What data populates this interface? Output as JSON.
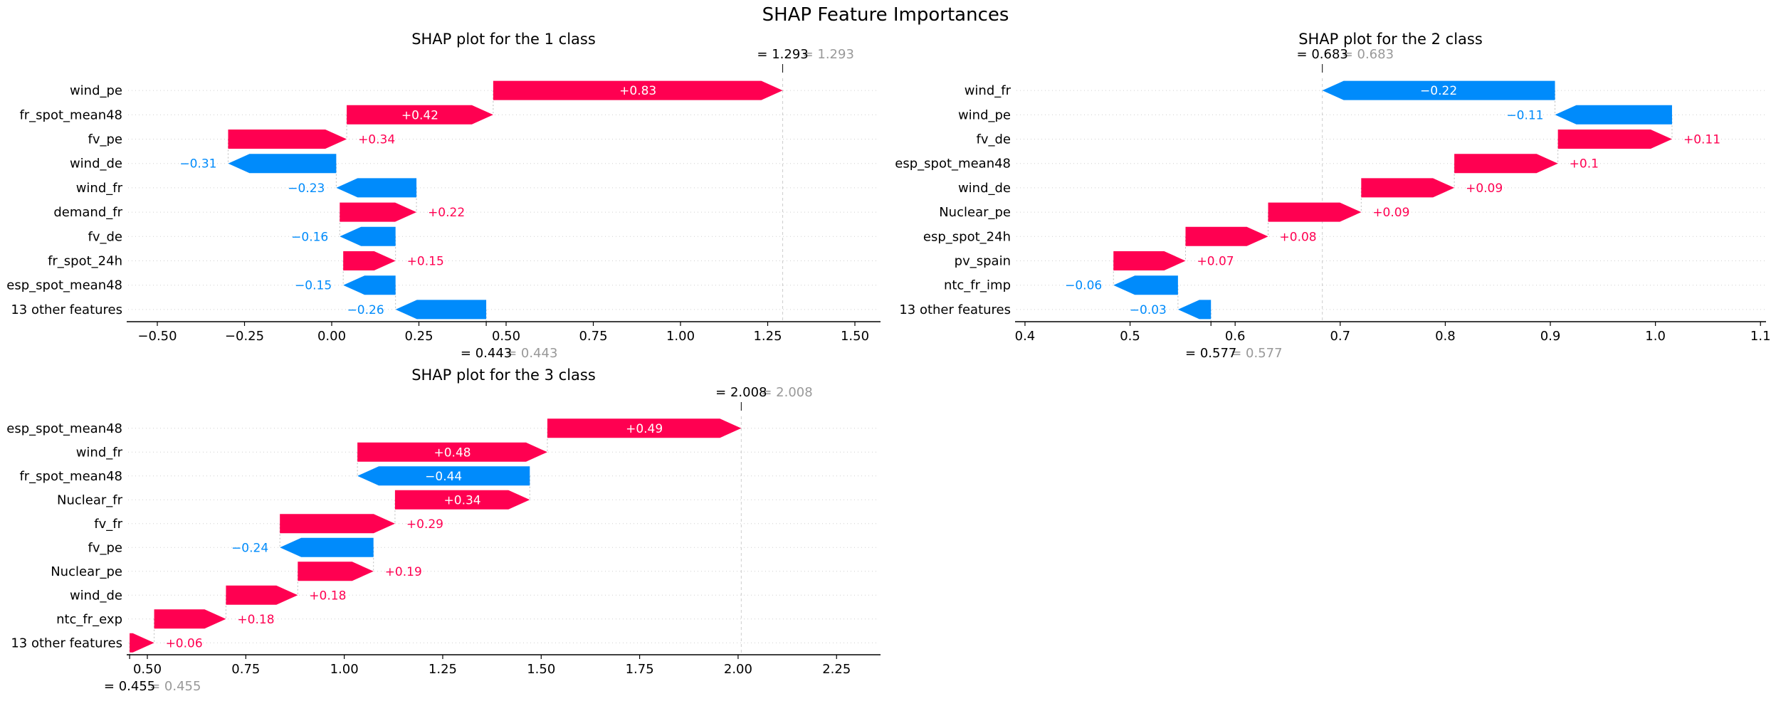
{
  "title": "SHAP Feature Importances",
  "colors": {
    "positive": "#ff0051",
    "negative": "#008bfb",
    "label_gray": "#999999",
    "text": "#000000",
    "grid_line": "#cfcfcf",
    "fx_line": "#cccccc",
    "connector_line": "#bbbbbb",
    "background": "#ffffff"
  },
  "chart_data": [
    {
      "type": "bar",
      "subtype": "shap-waterfall",
      "title": "SHAP plot for the 1 class",
      "fx": {
        "value": 1.293,
        "label": "= 1.293"
      },
      "base": {
        "value": 0.443,
        "label": "= 0.443"
      },
      "xlim": [
        -0.5837,
        1.5694
      ],
      "grid": true,
      "xticks": [
        {
          "v": -0.5,
          "label": "−0.50"
        },
        {
          "v": -0.25,
          "label": "−0.25"
        },
        {
          "v": 0.0,
          "label": "0.00"
        },
        {
          "v": 0.25,
          "label": "0.25"
        },
        {
          "v": 0.5,
          "label": "0.50"
        },
        {
          "v": 0.75,
          "label": "0.75"
        },
        {
          "v": 1.0,
          "label": "1.00"
        },
        {
          "v": 1.25,
          "label": "1.25"
        },
        {
          "v": 1.5,
          "label": "1.50"
        }
      ],
      "features": [
        {
          "name": "wind_pe",
          "value": 0.83,
          "label": "+0.83",
          "label_inside": true
        },
        {
          "name": "fr_spot_mean48",
          "value": 0.42,
          "label": "+0.42",
          "label_inside": true
        },
        {
          "name": "fv_pe",
          "value": 0.34,
          "label": "+0.34",
          "label_inside": false
        },
        {
          "name": "wind_de",
          "value": -0.31,
          "label": "−0.31",
          "label_inside": false
        },
        {
          "name": "wind_fr",
          "value": -0.23,
          "label": "−0.23",
          "label_inside": false
        },
        {
          "name": "demand_fr",
          "value": 0.22,
          "label": "+0.22",
          "label_inside": false
        },
        {
          "name": "fv_de",
          "value": -0.16,
          "label": "−0.16",
          "label_inside": false
        },
        {
          "name": "fr_spot_24h",
          "value": 0.15,
          "label": "+0.15",
          "label_inside": false
        },
        {
          "name": "esp_spot_mean48",
          "value": -0.15,
          "label": "−0.15",
          "label_inside": false
        },
        {
          "name": "13 other features",
          "value": -0.26,
          "label": "−0.26",
          "label_inside": false
        }
      ]
    },
    {
      "type": "bar",
      "subtype": "shap-waterfall",
      "title": "SHAP plot for the 2 class",
      "fx": {
        "value": 0.683,
        "label": "= 0.683"
      },
      "base": {
        "value": 0.577,
        "label": "= 0.577"
      },
      "xlim": [
        0.3919,
        1.1039
      ],
      "grid": true,
      "xticks": [
        {
          "v": 0.4,
          "label": "0.4"
        },
        {
          "v": 0.5,
          "label": "0.5"
        },
        {
          "v": 0.6,
          "label": "0.6"
        },
        {
          "v": 0.7,
          "label": "0.7"
        },
        {
          "v": 0.8,
          "label": "0.8"
        },
        {
          "v": 0.9,
          "label": "0.9"
        },
        {
          "v": 1.0,
          "label": "1.0"
        },
        {
          "v": 1.1,
          "label": "1.1"
        }
      ],
      "features": [
        {
          "name": "wind_fr",
          "value": -0.22,
          "label": "−0.22",
          "label_inside": true
        },
        {
          "name": "wind_pe",
          "value": -0.11,
          "label": "−0.11",
          "label_inside": false
        },
        {
          "name": "fv_de",
          "value": 0.11,
          "label": "+0.11",
          "label_inside": false
        },
        {
          "name": "esp_spot_mean48",
          "value": 0.1,
          "label": "+0.1",
          "label_inside": false
        },
        {
          "name": "wind_de",
          "value": 0.09,
          "label": "+0.09",
          "label_inside": false
        },
        {
          "name": "Nuclear_pe",
          "value": 0.09,
          "label": "+0.09",
          "label_inside": false
        },
        {
          "name": "esp_spot_24h",
          "value": 0.08,
          "label": "+0.08",
          "label_inside": false
        },
        {
          "name": "pv_spain",
          "value": 0.07,
          "label": "+0.07",
          "label_inside": false
        },
        {
          "name": "ntc_fr_imp",
          "value": -0.06,
          "label": "−0.06",
          "label_inside": false
        },
        {
          "name": "13 other features",
          "value": -0.03,
          "label": "−0.03",
          "label_inside": false
        }
      ]
    },
    {
      "type": "bar",
      "subtype": "shap-waterfall",
      "title": "SHAP plot for the 3 class",
      "fx": {
        "value": 2.008,
        "label": "= 2.008"
      },
      "base": {
        "value": 0.455,
        "label": "= 0.455"
      },
      "xlim": [
        0.4512,
        2.358
      ],
      "grid": true,
      "xticks": [
        {
          "v": 0.5,
          "label": "0.50"
        },
        {
          "v": 0.75,
          "label": "0.75"
        },
        {
          "v": 1.0,
          "label": "1.00"
        },
        {
          "v": 1.25,
          "label": "1.25"
        },
        {
          "v": 1.5,
          "label": "1.50"
        },
        {
          "v": 1.75,
          "label": "1.75"
        },
        {
          "v": 2.0,
          "label": "2.00"
        },
        {
          "v": 2.25,
          "label": "2.25"
        }
      ],
      "features": [
        {
          "name": "esp_spot_mean48",
          "value": 0.49,
          "label": "+0.49",
          "label_inside": true
        },
        {
          "name": "wind_fr",
          "value": 0.48,
          "label": "+0.48",
          "label_inside": true
        },
        {
          "name": "fr_spot_mean48",
          "value": -0.44,
          "label": "−0.44",
          "label_inside": true
        },
        {
          "name": "Nuclear_fr",
          "value": 0.34,
          "label": "+0.34",
          "label_inside": true
        },
        {
          "name": "fv_fr",
          "value": 0.29,
          "label": "+0.29",
          "label_inside": false
        },
        {
          "name": "fv_pe",
          "value": -0.24,
          "label": "−0.24",
          "label_inside": false
        },
        {
          "name": "Nuclear_pe",
          "value": 0.19,
          "label": "+0.19",
          "label_inside": false
        },
        {
          "name": "wind_de",
          "value": 0.18,
          "label": "+0.18",
          "label_inside": false
        },
        {
          "name": "ntc_fr_exp",
          "value": 0.18,
          "label": "+0.18",
          "label_inside": false
        },
        {
          "name": "13 other features",
          "value": 0.06,
          "label": "+0.06",
          "label_inside": false
        }
      ]
    }
  ]
}
